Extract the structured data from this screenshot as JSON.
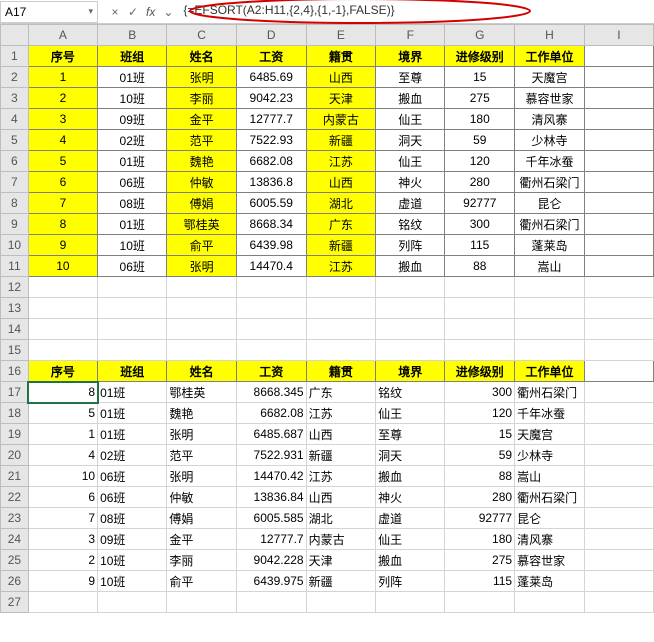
{
  "formula_bar": {
    "name_box": "A17",
    "cancel_icon": "×",
    "accept_icon": "✓",
    "fx_label": "fx",
    "expand_icon": "⌄",
    "formula": "{=EFSORT(A2:H11,{2,4},{1,-1},FALSE)}"
  },
  "columns": {
    "letters": [
      "A",
      "B",
      "C",
      "D",
      "E",
      "F",
      "G",
      "H",
      "I"
    ],
    "widths": [
      70,
      70,
      70,
      70,
      70,
      70,
      70,
      70,
      70
    ]
  },
  "row_header_width": 28,
  "table1": {
    "header_row": 1,
    "headers": [
      "序号",
      "班组",
      "姓名",
      "工资",
      "籍贯",
      "境界",
      "进修级别",
      "工作单位"
    ],
    "yellow_cols": [
      0,
      2,
      4
    ],
    "rows": [
      {
        "r": 2,
        "cells": [
          "1",
          "01班",
          "张明",
          "6485.69",
          "山西",
          "至尊",
          "15",
          "天魔宫"
        ]
      },
      {
        "r": 3,
        "cells": [
          "2",
          "10班",
          "李丽",
          "9042.23",
          "天津",
          "搬血",
          "275",
          "慕容世家"
        ]
      },
      {
        "r": 4,
        "cells": [
          "3",
          "09班",
          "金平",
          "12777.7",
          "内蒙古",
          "仙王",
          "180",
          "清风寨"
        ]
      },
      {
        "r": 5,
        "cells": [
          "4",
          "02班",
          "范平",
          "7522.93",
          "新疆",
          "洞天",
          "59",
          "少林寺"
        ]
      },
      {
        "r": 6,
        "cells": [
          "5",
          "01班",
          "魏艳",
          "6682.08",
          "江苏",
          "仙王",
          "120",
          "千年冰蚕"
        ]
      },
      {
        "r": 7,
        "cells": [
          "6",
          "06班",
          "仲敏",
          "13836.8",
          "山西",
          "神火",
          "280",
          "衢州石梁门"
        ]
      },
      {
        "r": 8,
        "cells": [
          "7",
          "08班",
          "傅娟",
          "6005.59",
          "湖北",
          "虚道",
          "92777",
          "昆仑"
        ]
      },
      {
        "r": 9,
        "cells": [
          "8",
          "01班",
          "鄂桂英",
          "8668.34",
          "广东",
          "铭纹",
          "300",
          "衢州石梁门"
        ]
      },
      {
        "r": 10,
        "cells": [
          "9",
          "10班",
          "俞平",
          "6439.98",
          "新疆",
          "列阵",
          "115",
          "蓬莱岛"
        ]
      },
      {
        "r": 11,
        "cells": [
          "10",
          "06班",
          "张明",
          "14470.4",
          "江苏",
          "搬血",
          "88",
          "嵩山"
        ]
      }
    ]
  },
  "table2": {
    "header_row": 16,
    "headers": [
      "序号",
      "班组",
      "姓名",
      "工资",
      "籍贯",
      "境界",
      "进修级别",
      "工作单位"
    ],
    "rows": [
      {
        "r": 17,
        "cells": [
          "8",
          "01班",
          "鄂桂英",
          "8668.345",
          "广东",
          "铭纹",
          "300",
          "衢州石梁门"
        ]
      },
      {
        "r": 18,
        "cells": [
          "5",
          "01班",
          "魏艳",
          "6682.08",
          "江苏",
          "仙王",
          "120",
          "千年冰蚕"
        ]
      },
      {
        "r": 19,
        "cells": [
          "1",
          "01班",
          "张明",
          "6485.687",
          "山西",
          "至尊",
          "15",
          "天魔宫"
        ]
      },
      {
        "r": 20,
        "cells": [
          "4",
          "02班",
          "范平",
          "7522.931",
          "新疆",
          "洞天",
          "59",
          "少林寺"
        ]
      },
      {
        "r": 21,
        "cells": [
          "10",
          "06班",
          "张明",
          "14470.42",
          "江苏",
          "搬血",
          "88",
          "嵩山"
        ]
      },
      {
        "r": 22,
        "cells": [
          "6",
          "06班",
          "仲敏",
          "13836.84",
          "山西",
          "神火",
          "280",
          "衢州石梁门"
        ]
      },
      {
        "r": 23,
        "cells": [
          "7",
          "08班",
          "傅娟",
          "6005.585",
          "湖北",
          "虚道",
          "92777",
          "昆仑"
        ]
      },
      {
        "r": 24,
        "cells": [
          "3",
          "09班",
          "金平",
          "12777.7",
          "内蒙古",
          "仙王",
          "180",
          "清风寨"
        ]
      },
      {
        "r": 25,
        "cells": [
          "2",
          "10班",
          "李丽",
          "9042.228",
          "天津",
          "搬血",
          "275",
          "慕容世家"
        ]
      },
      {
        "r": 26,
        "cells": [
          "9",
          "10班",
          "俞平",
          "6439.975",
          "新疆",
          "列阵",
          "115",
          "蓬莱岛"
        ]
      }
    ],
    "align": [
      "right",
      "left",
      "left",
      "right",
      "left",
      "left",
      "right",
      "left"
    ]
  },
  "empty_rows": [
    12,
    13,
    14,
    15,
    27
  ],
  "annotation": {
    "color": "#d40000",
    "stroke_width": 2
  }
}
